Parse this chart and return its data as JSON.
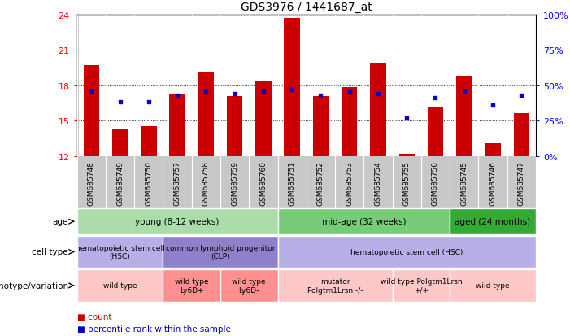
{
  "title": "GDS3976 / 1441687_at",
  "samples": [
    "GSM685748",
    "GSM685749",
    "GSM685750",
    "GSM685757",
    "GSM685758",
    "GSM685759",
    "GSM685760",
    "GSM685751",
    "GSM685752",
    "GSM685753",
    "GSM685754",
    "GSM685755",
    "GSM685756",
    "GSM685745",
    "GSM685746",
    "GSM685747"
  ],
  "counts": [
    19.7,
    14.3,
    14.5,
    17.3,
    19.1,
    17.1,
    18.3,
    23.7,
    17.1,
    17.8,
    19.9,
    12.2,
    16.1,
    18.7,
    13.1,
    15.6
  ],
  "percentiles": [
    46,
    38,
    38,
    43,
    45,
    44,
    46,
    47,
    43,
    45,
    44,
    27,
    41,
    46,
    36,
    43
  ],
  "ymin": 12,
  "ymax": 24,
  "yticks": [
    12,
    15,
    18,
    21,
    24
  ],
  "y2ticks_pct": [
    0,
    25,
    50,
    75,
    100
  ],
  "y2labels": [
    "0%",
    "25%",
    "50%",
    "75%",
    "100%"
  ],
  "bar_color": "#cc0000",
  "dot_color": "#0000cc",
  "plot_bg": "#ffffff",
  "tick_bg": "#c8c8c8",
  "age_groups": [
    {
      "label": "young (8-12 weeks)",
      "start": 0,
      "end": 7,
      "color": "#aaddaa"
    },
    {
      "label": "mid-age (32 weeks)",
      "start": 7,
      "end": 13,
      "color": "#77cc77"
    },
    {
      "label": "aged (24 months)",
      "start": 13,
      "end": 16,
      "color": "#33aa33"
    }
  ],
  "cell_types": [
    {
      "label": "hematopoietic stem cell\n(HSC)",
      "start": 0,
      "end": 3,
      "color": "#b8aee8"
    },
    {
      "label": "common lymphoid progenitor\n(CLP)",
      "start": 3,
      "end": 7,
      "color": "#9080cc"
    },
    {
      "label": "hematopoietic stem cell (HSC)",
      "start": 7,
      "end": 16,
      "color": "#b8aee8"
    }
  ],
  "genotypes": [
    {
      "label": "wild type",
      "start": 0,
      "end": 3,
      "color": "#ffc8c8"
    },
    {
      "label": "wild type\nLy6D+",
      "start": 3,
      "end": 5,
      "color": "#ff9090"
    },
    {
      "label": "wild type\nLy6D-",
      "start": 5,
      "end": 7,
      "color": "#ff9090"
    },
    {
      "label": "mutator\nPolgtm1Lrsn -/-",
      "start": 7,
      "end": 11,
      "color": "#ffc8c8"
    },
    {
      "label": "wild type Polgtm1Lrsn\n+/+",
      "start": 11,
      "end": 13,
      "color": "#ffc8c8"
    },
    {
      "label": "wild type",
      "start": 13,
      "end": 16,
      "color": "#ffc8c8"
    }
  ],
  "left_labels": [
    "age",
    "cell type",
    "genotype/variation"
  ],
  "legend": [
    {
      "color": "#cc0000",
      "label": "count"
    },
    {
      "color": "#0000cc",
      "label": "percentile rank within the sample"
    }
  ]
}
